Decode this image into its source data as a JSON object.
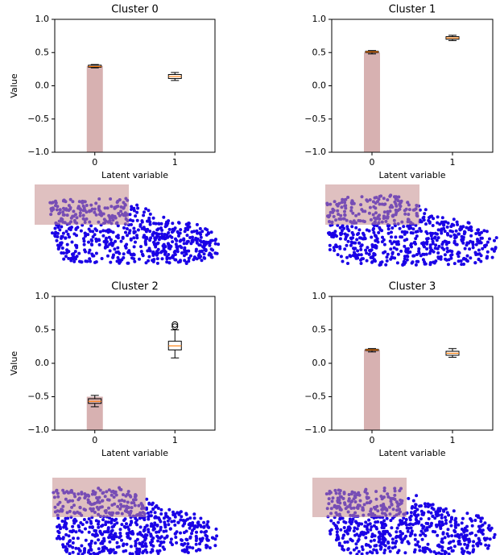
{
  "chart_data": [
    {
      "type": "box",
      "title": "Cluster 0",
      "xlabel": "Latent variable",
      "ylabel": "Value",
      "categories": [
        "0",
        "1"
      ],
      "boxes": [
        {
          "min": 0.27,
          "q1": 0.28,
          "median": 0.29,
          "q3": 0.31,
          "max": 0.32,
          "outliers": []
        },
        {
          "min": 0.08,
          "q1": 0.11,
          "median": 0.14,
          "q3": 0.17,
          "max": 0.2,
          "outliers": []
        }
      ],
      "bar_values": [
        0.3,
        null
      ],
      "bar_color": "#d7b1b1",
      "median_color": "#ff7f0e",
      "ylim": [
        -1,
        1
      ],
      "yticks": [
        {
          "value": -1,
          "label": "−1.0"
        },
        {
          "value": -0.5,
          "label": "−0.5"
        },
        {
          "value": 0,
          "label": "0.0"
        },
        0.5,
        {
          "value": 1,
          "label": "1.0"
        }
      ]
    },
    {
      "type": "box",
      "title": "Cluster 1",
      "xlabel": "Latent variable",
      "categories": [
        "0",
        "1"
      ],
      "boxes": [
        {
          "min": 0.48,
          "q1": 0.5,
          "median": 0.51,
          "q3": 0.52,
          "max": 0.53,
          "outliers": []
        },
        {
          "min": 0.68,
          "q1": 0.7,
          "median": 0.72,
          "q3": 0.74,
          "max": 0.76,
          "outliers": []
        }
      ],
      "bar_values": [
        0.5,
        null
      ],
      "bar_color": "#d7b1b1",
      "median_color": "#ff7f0e",
      "ylim": [
        -1,
        1
      ],
      "yticks": [
        {
          "value": -1,
          "label": "−1.0"
        },
        {
          "value": -0.5,
          "label": "−0.5"
        },
        {
          "value": 0,
          "label": "0.0"
        },
        0.5,
        {
          "value": 1,
          "label": "1.0"
        }
      ]
    },
    {
      "type": "box",
      "title": "Cluster 2",
      "xlabel": "Latent variable",
      "ylabel": "Value",
      "categories": [
        "0",
        "1"
      ],
      "boxes": [
        {
          "min": -0.65,
          "q1": -0.6,
          "median": -0.57,
          "q3": -0.53,
          "max": -0.48,
          "outliers": []
        },
        {
          "min": 0.08,
          "q1": 0.2,
          "median": 0.26,
          "q3": 0.33,
          "max": 0.5,
          "outliers": [
            0.55,
            0.58
          ]
        }
      ],
      "bar_values": [
        -0.5,
        null
      ],
      "bar_color": "#d7b1b1",
      "median_color": "#ff7f0e",
      "ylim": [
        -1,
        1
      ],
      "yticks": [
        {
          "value": -1,
          "label": "−1.0"
        },
        {
          "value": -0.5,
          "label": "−0.5"
        },
        {
          "value": 0,
          "label": "0.0"
        },
        0.5,
        {
          "value": 1,
          "label": "1.0"
        }
      ]
    },
    {
      "type": "box",
      "title": "Cluster 3",
      "xlabel": "Latent variable",
      "categories": [
        "0",
        "1"
      ],
      "boxes": [
        {
          "min": 0.17,
          "q1": 0.19,
          "median": 0.2,
          "q3": 0.21,
          "max": 0.22,
          "outliers": []
        },
        {
          "min": 0.09,
          "q1": 0.12,
          "median": 0.15,
          "q3": 0.18,
          "max": 0.22,
          "outliers": []
        }
      ],
      "bar_values": [
        0.2,
        null
      ],
      "bar_color": "#d7b1b1",
      "median_color": "#ff7f0e",
      "ylim": [
        -1,
        1
      ],
      "yticks": [
        {
          "value": -1,
          "label": "−1.0"
        },
        {
          "value": -0.5,
          "label": "−0.5"
        },
        {
          "value": 0,
          "label": "0.0"
        },
        0.5,
        {
          "value": 1,
          "label": "1.0"
        }
      ]
    }
  ]
}
